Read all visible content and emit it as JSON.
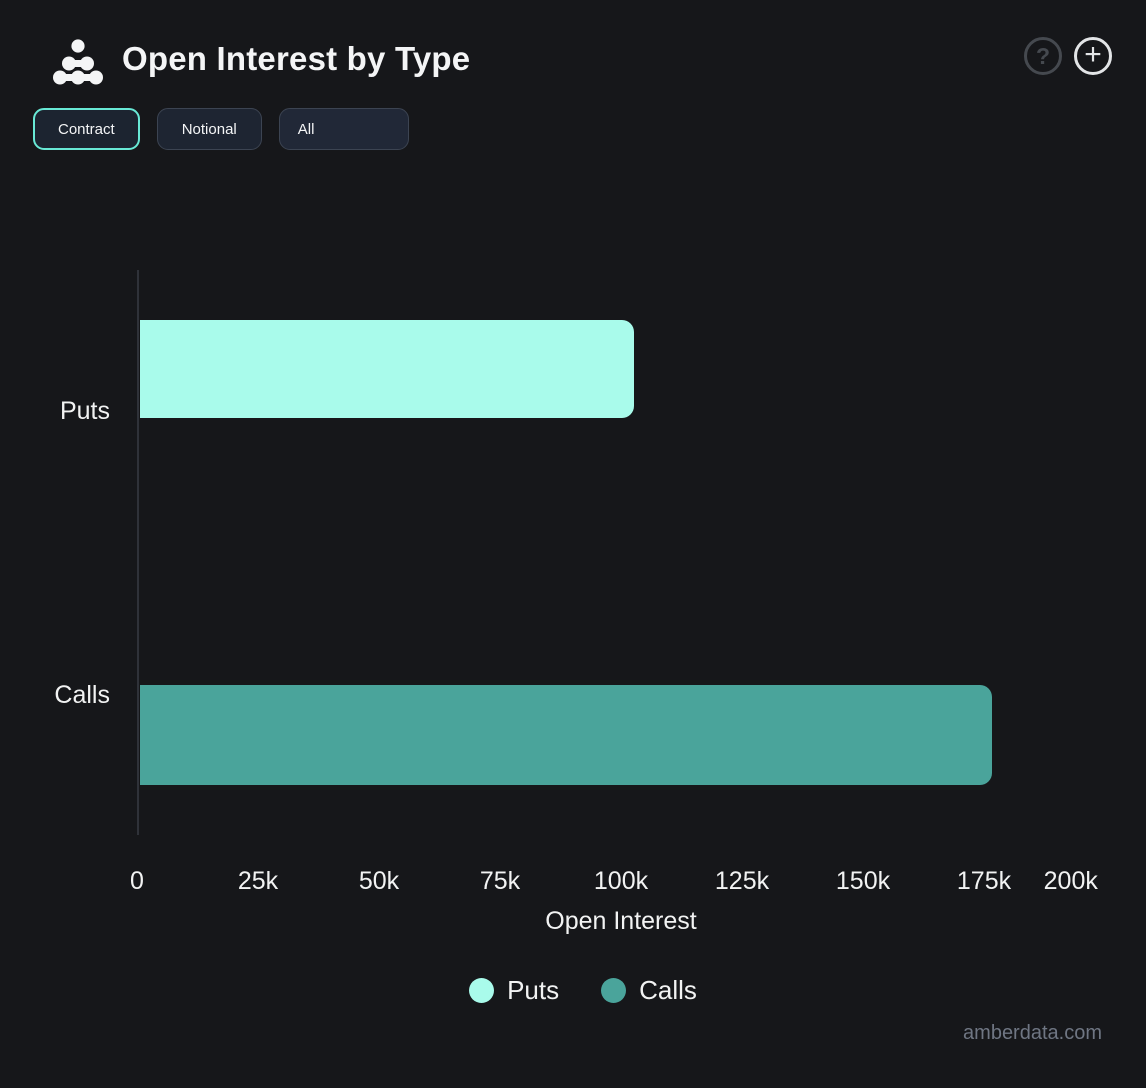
{
  "header": {
    "title": "Open Interest by Type",
    "logo_icon": "cluster-dots-icon",
    "help_glyph": "?",
    "add_glyph": "+"
  },
  "toolbar": {
    "buttons": [
      {
        "label": "Contract",
        "active": true
      },
      {
        "label": "Notional",
        "active": false
      }
    ],
    "filter_dropdown": {
      "value": "All"
    }
  },
  "chart_data": {
    "type": "bar",
    "orientation": "horizontal",
    "title": "Open Interest by Type",
    "categories": [
      "Puts",
      "Calls"
    ],
    "series": [
      {
        "name": "Puts",
        "value": 102000,
        "color": "#a9fbeb"
      },
      {
        "name": "Calls",
        "value": 176000,
        "color": "#4aa49b"
      }
    ],
    "xlabel": "Open Interest",
    "x_ticks": [
      "0",
      "25k",
      "50k",
      "75k",
      "100k",
      "125k",
      "150k",
      "175k",
      "200k"
    ],
    "xlim": [
      0,
      200000
    ],
    "grid": false,
    "legend": [
      {
        "label": "Puts",
        "color": "#a9fbeb"
      },
      {
        "label": "Calls",
        "color": "#4aa49b"
      }
    ],
    "legend_position": "bottom"
  },
  "colors": {
    "background": "#16171a",
    "accent_mint": "#a9fbeb",
    "accent_teal": "#4aa49b",
    "active_border": "#68e9d6",
    "axis_line": "#2f3239",
    "text": "#f2f3f3",
    "muted": "#6f7683"
  },
  "watermark": "amberdata.com"
}
